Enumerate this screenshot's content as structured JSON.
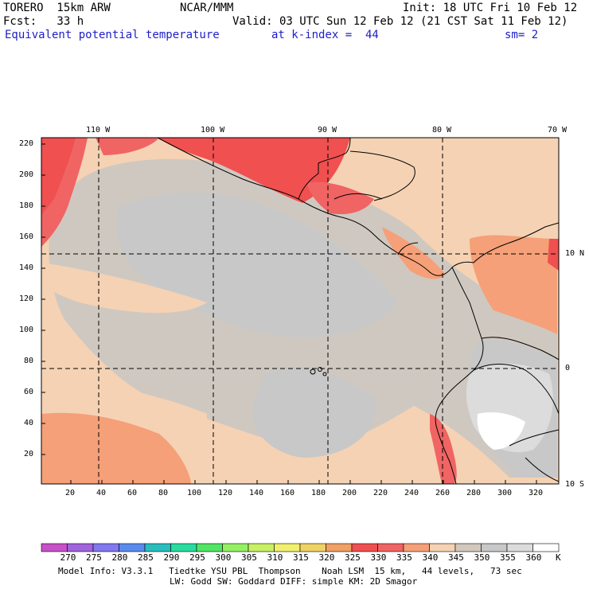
{
  "header": {
    "model": "TORERO  15km ARW",
    "org": "NCAR/MMM",
    "init": "Init: 18 UTC Fri 10 Feb 12",
    "fcst": "Fcst:   33 h",
    "valid": "Valid: 03 UTC Sun 12 Feb 12 (21 CST Sat 11 Feb 12)",
    "field": "Equivalent potential temperature",
    "level": "at k-index =  44",
    "smooth": "sm= 2"
  },
  "lon_labels": [
    "110 W",
    "100 W",
    "90 W",
    "80 W",
    "70 W"
  ],
  "lat_labels": [
    "10 N",
    "0",
    "10 S"
  ],
  "x_ticks": [
    "20",
    "40",
    "60",
    "80",
    "100",
    "120",
    "140",
    "160",
    "180",
    "200",
    "220",
    "240",
    "260",
    "280",
    "300",
    "320"
  ],
  "y_ticks": [
    "220",
    "200",
    "180",
    "160",
    "140",
    "120",
    "100",
    "80",
    "60",
    "40",
    "20"
  ],
  "colorbar": {
    "labels": [
      "270",
      "275",
      "280",
      "285",
      "290",
      "295",
      "300",
      "305",
      "310",
      "315",
      "320",
      "325",
      "330",
      "335",
      "340",
      "345",
      "350",
      "355",
      "360"
    ],
    "unit": "K",
    "colors": [
      "#c850c8",
      "#a064dc",
      "#8278f0",
      "#5a8cf0",
      "#28bebe",
      "#28dca0",
      "#50e664",
      "#96f064",
      "#c8f064",
      "#f0f06e",
      "#f0d264",
      "#f0a064",
      "#f05050",
      "#f06464",
      "#f5a078",
      "#f5d2b4",
      "#d2c8be",
      "#c8c8c8",
      "#dcdcdc",
      "#ffffff"
    ]
  },
  "footer": {
    "line1": "Model Info: V3.3.1   Tiedtke YSU PBL  Thompson    Noah LSM  15 km,   44 levels,   73 sec",
    "line2": "LW: Godd SW: Goddard DIFF: simple KM: 2D Smagor"
  }
}
